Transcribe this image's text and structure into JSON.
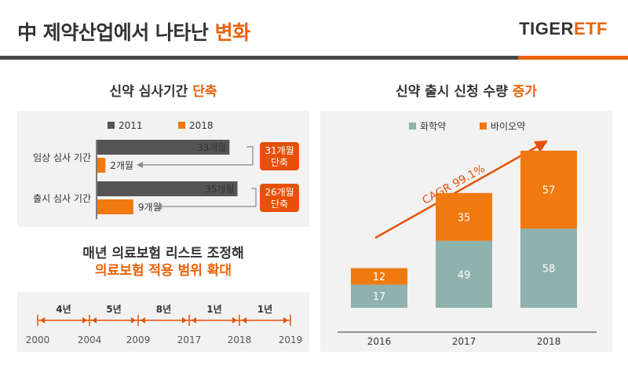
{
  "header": {
    "title_main": "中 제약산업에서 나타난 ",
    "title_highlight": "변화",
    "brand_part1": "TIGER",
    "brand_part2": "ETF"
  },
  "review": {
    "title_main": "신약 심사기간 ",
    "title_highlight": "단축",
    "legend": [
      {
        "label": "2011",
        "color": "#555555"
      },
      {
        "label": "2018",
        "color": "#f07a10"
      }
    ],
    "rows": [
      {
        "label": "임상 심사 기간",
        "value_2011": 33,
        "label_2011": "33개월",
        "value_2018": 2,
        "label_2018": "2개월",
        "reduction_line1": "31개월",
        "reduction_line2": "단축"
      },
      {
        "label": "출시 심사 기간",
        "value_2011": 35,
        "label_2011": "35개월",
        "value_2018": 9,
        "label_2018": "9개월",
        "reduction_line1": "26개월",
        "reduction_line2": "단축"
      }
    ]
  },
  "insurance": {
    "title_line1": "매년 의료보험 리스트 조정해",
    "title_line2": "의료보험 적용 범위 확대",
    "years": [
      "2000",
      "2004",
      "2009",
      "2017",
      "2018",
      "2019"
    ],
    "intervals": [
      "4년",
      "5년",
      "8년",
      "1년",
      "1년"
    ]
  },
  "approvals": {
    "title_main": "신약 출시 신청 수량 ",
    "title_highlight": "증가",
    "cagr_label": "CAGR 99.1%"
  },
  "chart_data": {
    "type": "bar",
    "stacked": true,
    "categories": [
      "2016",
      "2017",
      "2018"
    ],
    "series": [
      {
        "name": "화학약",
        "color": "#8fb1ac",
        "values": [
          17,
          49,
          58
        ]
      },
      {
        "name": "바이오약",
        "color": "#f07a10",
        "values": [
          12,
          35,
          57
        ]
      }
    ],
    "legend_position": "top",
    "annotation": "CAGR 99.1%"
  }
}
